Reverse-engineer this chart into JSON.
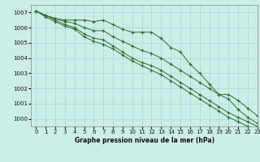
{
  "title": "Graphe pression niveau de la mer (hPa)",
  "bg_color": "#cceee8",
  "grid_color": "#aaddd8",
  "line_color": "#2d6e2d",
  "marker_color": "#2d6e2d",
  "xlim": [
    -0.5,
    23
  ],
  "ylim": [
    999.5,
    1007.5
  ],
  "yticks": [
    1000,
    1001,
    1002,
    1003,
    1004,
    1005,
    1006,
    1007
  ],
  "xticks": [
    0,
    1,
    2,
    3,
    4,
    5,
    6,
    7,
    8,
    9,
    10,
    11,
    12,
    13,
    14,
    15,
    16,
    17,
    18,
    19,
    20,
    21,
    22,
    23
  ],
  "series": [
    [
      1007.1,
      1006.8,
      1006.6,
      1006.5,
      1006.5,
      1006.5,
      1006.4,
      1006.5,
      1006.2,
      1005.9,
      1005.7,
      1005.7,
      1005.7,
      1005.3,
      1004.7,
      1004.4,
      1003.6,
      1003.0,
      1002.3,
      1001.6,
      1001.3,
      1000.6,
      1000.1,
      999.7
    ],
    [
      1007.1,
      1006.8,
      1006.6,
      1006.4,
      1006.3,
      1006.0,
      1005.8,
      1005.8,
      1005.4,
      1005.1,
      1004.8,
      1004.5,
      1004.3,
      1004.0,
      1003.6,
      1003.2,
      1002.8,
      1002.4,
      1002.0,
      1001.6,
      1001.6,
      1001.2,
      1000.7,
      1000.2
    ],
    [
      1007.1,
      1006.8,
      1006.5,
      1006.2,
      1006.0,
      1005.6,
      1005.3,
      1005.2,
      1004.8,
      1004.4,
      1004.0,
      1003.7,
      1003.5,
      1003.2,
      1002.8,
      1002.4,
      1002.0,
      1001.6,
      1001.2,
      1000.8,
      1000.4,
      1000.1,
      999.8,
      999.5
    ],
    [
      1007.1,
      1006.7,
      1006.4,
      1006.1,
      1005.9,
      1005.4,
      1005.1,
      1004.9,
      1004.6,
      1004.2,
      1003.8,
      1003.5,
      1003.2,
      1002.9,
      1002.5,
      1002.1,
      1001.7,
      1001.3,
      1000.9,
      1000.5,
      1000.1,
      999.8,
      999.5,
      999.2
    ]
  ]
}
